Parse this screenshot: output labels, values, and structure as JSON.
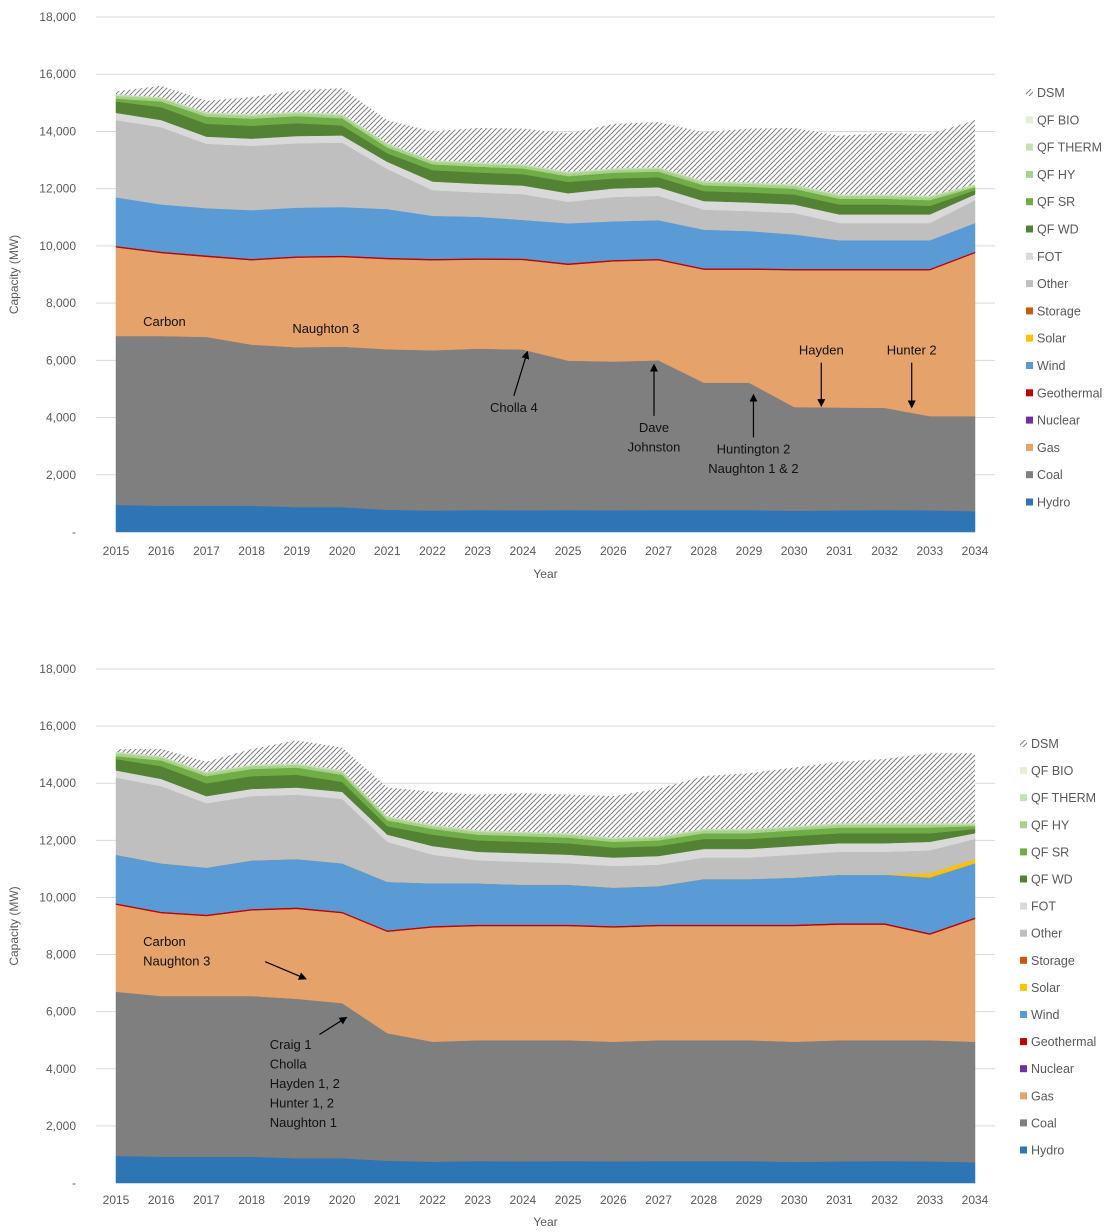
{
  "chart_data": [
    {
      "type": "area",
      "stacked": true,
      "xlabel": "Year",
      "ylabel": "Capacity (MW)",
      "ylim": [
        0,
        18000
      ],
      "y_ticks": [
        0,
        2000,
        4000,
        6000,
        8000,
        10000,
        12000,
        14000,
        16000,
        18000
      ],
      "y_tick_labels": [
        "-",
        "2,000",
        "4,000",
        "6,000",
        "8,000",
        "10,000",
        "12,000",
        "14,000",
        "16,000",
        "18,000"
      ],
      "grid": "horizontal",
      "legend_position": "right",
      "x": [
        2015,
        2016,
        2017,
        2018,
        2019,
        2020,
        2021,
        2022,
        2023,
        2024,
        2025,
        2026,
        2027,
        2028,
        2029,
        2030,
        2031,
        2032,
        2033,
        2034
      ],
      "series": [
        {
          "name": "Hydro",
          "color": "#2e75b6",
          "values": [
            950,
            920,
            920,
            920,
            870,
            870,
            780,
            750,
            770,
            760,
            770,
            760,
            770,
            770,
            770,
            740,
            760,
            770,
            760,
            730
          ]
        },
        {
          "name": "Coal",
          "color": "#7f7f7f",
          "values": [
            5900,
            5930,
            5900,
            5630,
            5590,
            5610,
            5610,
            5600,
            5640,
            5620,
            5220,
            5200,
            5230,
            4450,
            4450,
            3630,
            3590,
            3570,
            3290,
            3320
          ]
        },
        {
          "name": "Gas",
          "color": "#e5a26b",
          "values": [
            3100,
            2900,
            2800,
            2950,
            3130,
            3130,
            3150,
            3150,
            3110,
            3130,
            3350,
            3500,
            3500,
            3950,
            3950,
            4780,
            4800,
            4810,
            5100,
            5700
          ]
        },
        {
          "name": "Nuclear",
          "color": "#7030a0",
          "values": [
            0,
            0,
            0,
            0,
            0,
            0,
            0,
            0,
            0,
            0,
            0,
            0,
            0,
            0,
            0,
            0,
            0,
            0,
            0,
            0
          ]
        },
        {
          "name": "Geothermal",
          "color": "#c00000",
          "values": [
            50,
            50,
            50,
            50,
            50,
            50,
            50,
            50,
            50,
            50,
            50,
            50,
            50,
            50,
            50,
            50,
            50,
            50,
            50,
            50
          ]
        },
        {
          "name": "Wind",
          "color": "#5b9bd5",
          "values": [
            1700,
            1650,
            1650,
            1700,
            1700,
            1700,
            1700,
            1500,
            1450,
            1350,
            1400,
            1350,
            1350,
            1350,
            1300,
            1200,
            1000,
            1000,
            1000,
            1000
          ]
        },
        {
          "name": "Solar",
          "color": "#ffc000",
          "values": [
            0,
            0,
            0,
            0,
            0,
            0,
            0,
            0,
            0,
            0,
            0,
            0,
            0,
            0,
            0,
            0,
            0,
            0,
            0,
            0
          ]
        },
        {
          "name": "Storage",
          "color": "#c55a11",
          "values": [
            0,
            0,
            0,
            0,
            0,
            0,
            0,
            0,
            0,
            0,
            0,
            0,
            0,
            0,
            0,
            0,
            0,
            0,
            0,
            0
          ]
        },
        {
          "name": "Other",
          "color": "#bfbfbf",
          "values": [
            2700,
            2700,
            2250,
            2250,
            2250,
            2250,
            1400,
            900,
            850,
            900,
            750,
            850,
            850,
            700,
            700,
            750,
            600,
            600,
            600,
            800
          ]
        },
        {
          "name": "FOT",
          "color": "#d9d9d9",
          "values": [
            250,
            250,
            250,
            250,
            250,
            250,
            250,
            300,
            300,
            300,
            300,
            300,
            300,
            300,
            300,
            300,
            300,
            300,
            300,
            200
          ]
        },
        {
          "name": "QF WD",
          "color": "#548235",
          "values": [
            400,
            450,
            450,
            450,
            450,
            350,
            300,
            400,
            400,
            400,
            400,
            350,
            350,
            350,
            350,
            350,
            350,
            350,
            300,
            150
          ]
        },
        {
          "name": "QF SR",
          "color": "#70ad47",
          "values": [
            100,
            200,
            250,
            250,
            250,
            250,
            200,
            200,
            200,
            200,
            200,
            200,
            200,
            200,
            200,
            200,
            200,
            200,
            200,
            100
          ]
        },
        {
          "name": "QF HY",
          "color": "#a9d18e",
          "values": [
            100,
            100,
            100,
            100,
            100,
            100,
            100,
            100,
            100,
            100,
            100,
            100,
            100,
            100,
            100,
            100,
            100,
            100,
            100,
            50
          ]
        },
        {
          "name": "QF THERM",
          "color": "#c5e0b4",
          "values": [
            50,
            50,
            50,
            50,
            50,
            50,
            50,
            50,
            50,
            50,
            50,
            50,
            50,
            50,
            50,
            50,
            50,
            50,
            50,
            50
          ]
        },
        {
          "name": "QF BIO",
          "color": "#e2f0d9",
          "values": [
            0,
            0,
            0,
            0,
            0,
            0,
            0,
            0,
            0,
            0,
            0,
            0,
            0,
            0,
            0,
            0,
            0,
            0,
            0,
            0
          ]
        },
        {
          "name": "DSM",
          "color": "pattern",
          "values": [
            100,
            400,
            400,
            600,
            750,
            900,
            800,
            1000,
            1200,
            1240,
            1340,
            1550,
            1580,
            1700,
            1880,
            1970,
            2050,
            2150,
            2150,
            2250
          ]
        }
      ],
      "annotations": [
        {
          "lines": [
            "Carbon"
          ],
          "x": 2015.6,
          "y": 7200
        },
        {
          "lines": [
            "Naughton 3"
          ],
          "x": 2018.9,
          "y": 6950
        },
        {
          "lines": [
            "Cholla 4"
          ],
          "x": 2023.8,
          "y": 4200,
          "arrow_to": [
            2024.1,
            6300
          ]
        },
        {
          "lines": [
            "Dave",
            "Johnston"
          ],
          "x": 2026.9,
          "y": 3500,
          "arrow_to": [
            2026.9,
            5850
          ]
        },
        {
          "lines": [
            "Huntington 2",
            "Naughton 1 & 2"
          ],
          "x": 2029.1,
          "y": 2750,
          "arrow_to": [
            2029.1,
            4800
          ]
        },
        {
          "lines": [
            "Hayden"
          ],
          "x": 2030.6,
          "y": 6200,
          "arrow_to": [
            2030.6,
            4400
          ]
        },
        {
          "lines": [
            "Hunter 2"
          ],
          "x": 2032.6,
          "y": 6200,
          "arrow_to": [
            2032.6,
            4350
          ]
        }
      ]
    },
    {
      "type": "area",
      "stacked": true,
      "xlabel": "Year",
      "ylabel": "Capacity (MW)",
      "ylim": [
        0,
        18000
      ],
      "y_ticks": [
        0,
        2000,
        4000,
        6000,
        8000,
        10000,
        12000,
        14000,
        16000,
        18000
      ],
      "y_tick_labels": [
        "-",
        "2,000",
        "4,000",
        "6,000",
        "8,000",
        "10,000",
        "12,000",
        "14,000",
        "16,000",
        "18,000"
      ],
      "grid": "horizontal",
      "legend_position": "right",
      "x": [
        2015,
        2016,
        2017,
        2018,
        2019,
        2020,
        2021,
        2022,
        2023,
        2024,
        2025,
        2026,
        2027,
        2028,
        2029,
        2030,
        2031,
        2032,
        2033,
        2034
      ],
      "series": [
        {
          "name": "Hydro",
          "color": "#2e75b6",
          "values": [
            950,
            920,
            920,
            920,
            870,
            870,
            780,
            750,
            770,
            760,
            770,
            760,
            770,
            770,
            770,
            740,
            760,
            770,
            760,
            730
          ]
        },
        {
          "name": "Coal",
          "color": "#7f7f7f",
          "values": [
            5750,
            5630,
            5630,
            5630,
            5580,
            5430,
            4470,
            4200,
            4230,
            4240,
            4230,
            4190,
            4230,
            4230,
            4230,
            4210,
            4240,
            4230,
            4240,
            4220
          ]
        },
        {
          "name": "Gas",
          "color": "#e5a26b",
          "values": [
            3050,
            2900,
            2800,
            3000,
            3150,
            3150,
            3550,
            4000,
            4000,
            4000,
            4000,
            4000,
            4000,
            4000,
            4000,
            4050,
            4050,
            4050,
            3700,
            4300
          ]
        },
        {
          "name": "Nuclear",
          "color": "#7030a0",
          "values": [
            0,
            0,
            0,
            0,
            0,
            0,
            0,
            0,
            0,
            0,
            0,
            0,
            0,
            0,
            0,
            0,
            0,
            0,
            0,
            0
          ]
        },
        {
          "name": "Geothermal",
          "color": "#c00000",
          "values": [
            50,
            50,
            50,
            50,
            50,
            50,
            50,
            50,
            50,
            50,
            50,
            50,
            50,
            50,
            50,
            50,
            50,
            50,
            50,
            50
          ]
        },
        {
          "name": "Wind",
          "color": "#5b9bd5",
          "values": [
            1700,
            1700,
            1650,
            1700,
            1700,
            1700,
            1700,
            1500,
            1450,
            1400,
            1400,
            1350,
            1350,
            1600,
            1600,
            1650,
            1700,
            1700,
            1950,
            1900
          ]
        },
        {
          "name": "Solar",
          "color": "#ffc000",
          "values": [
            0,
            0,
            0,
            0,
            0,
            0,
            0,
            0,
            0,
            0,
            0,
            0,
            0,
            0,
            0,
            0,
            0,
            0,
            150,
            150
          ]
        },
        {
          "name": "Storage",
          "color": "#c55a11",
          "values": [
            0,
            0,
            0,
            0,
            0,
            0,
            0,
            0,
            0,
            0,
            0,
            0,
            0,
            0,
            0,
            0,
            0,
            0,
            0,
            0
          ]
        },
        {
          "name": "Other",
          "color": "#bfbfbf",
          "values": [
            2700,
            2700,
            2250,
            2250,
            2250,
            2250,
            1400,
            1000,
            800,
            800,
            750,
            750,
            750,
            750,
            750,
            800,
            800,
            800,
            800,
            700
          ]
        },
        {
          "name": "FOT",
          "color": "#d9d9d9",
          "values": [
            250,
            250,
            250,
            250,
            250,
            250,
            250,
            300,
            300,
            300,
            300,
            300,
            300,
            300,
            300,
            300,
            300,
            300,
            300,
            200
          ]
        },
        {
          "name": "QF WD",
          "color": "#548235",
          "values": [
            400,
            450,
            450,
            450,
            450,
            350,
            300,
            400,
            400,
            400,
            400,
            350,
            350,
            350,
            350,
            350,
            350,
            350,
            300,
            150
          ]
        },
        {
          "name": "QF SR",
          "color": "#70ad47",
          "values": [
            100,
            200,
            250,
            250,
            250,
            250,
            200,
            200,
            200,
            200,
            200,
            200,
            200,
            200,
            200,
            200,
            200,
            200,
            200,
            100
          ]
        },
        {
          "name": "QF HY",
          "color": "#a9d18e",
          "values": [
            100,
            100,
            100,
            100,
            100,
            100,
            100,
            100,
            100,
            100,
            100,
            100,
            100,
            100,
            100,
            100,
            100,
            100,
            100,
            50
          ]
        },
        {
          "name": "QF THERM",
          "color": "#c5e0b4",
          "values": [
            50,
            50,
            50,
            50,
            50,
            50,
            50,
            50,
            50,
            50,
            50,
            50,
            50,
            50,
            50,
            50,
            50,
            50,
            50,
            50
          ]
        },
        {
          "name": "QF BIO",
          "color": "#e2f0d9",
          "values": [
            0,
            0,
            0,
            0,
            0,
            0,
            0,
            0,
            0,
            0,
            0,
            0,
            0,
            0,
            0,
            0,
            0,
            0,
            0,
            0
          ]
        },
        {
          "name": "DSM",
          "color": "pattern",
          "values": [
            100,
            250,
            350,
            550,
            800,
            800,
            1000,
            1150,
            1250,
            1350,
            1350,
            1450,
            1650,
            1850,
            1950,
            2050,
            2150,
            2250,
            2450,
            2450
          ]
        }
      ],
      "annotations": [
        {
          "lines": [
            "Carbon",
            "Naughton 3"
          ],
          "x": 2015.6,
          "y": 8300,
          "arrow_from": [
            2018.3,
            7750
          ],
          "arrow_to": [
            2019.2,
            7150
          ]
        },
        {
          "lines": [
            "Craig 1",
            "Cholla",
            "Hayden 1, 2",
            "Hunter 1, 2",
            "Naughton 1"
          ],
          "x": 2018.4,
          "y": 4700,
          "arrow_from": [
            2019.5,
            5200
          ],
          "arrow_to": [
            2020.1,
            5800
          ]
        }
      ]
    }
  ]
}
